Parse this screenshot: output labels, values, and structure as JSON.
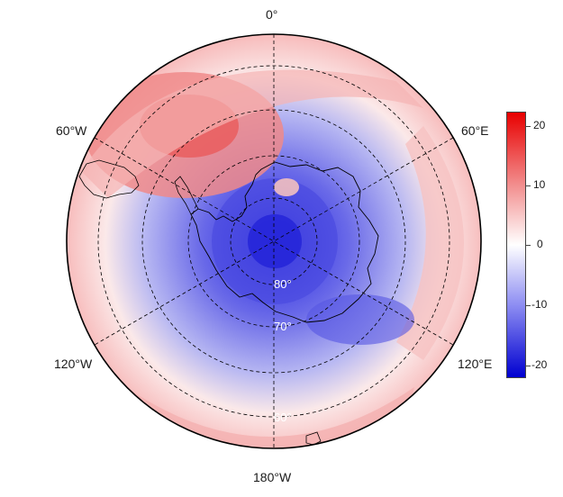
{
  "map": {
    "projection": "south polar stereographic",
    "longitude_labels": {
      "top": "0°",
      "upper_left": "60°W",
      "upper_right": "60°E",
      "lower_left": "120°W",
      "lower_right": "120°E",
      "bottom": "180°W"
    },
    "latitude_labels": [
      "80°",
      "70°",
      "60°"
    ],
    "colors": {
      "negative_max": "#0000d0",
      "zero": "#ffffff",
      "positive_max": "#e80000",
      "coast": "#000000",
      "grid": "#000000"
    }
  },
  "colorbar": {
    "ticks": [
      "20",
      "10",
      "0",
      "-10",
      "-20"
    ],
    "range": [
      -22,
      22
    ]
  }
}
